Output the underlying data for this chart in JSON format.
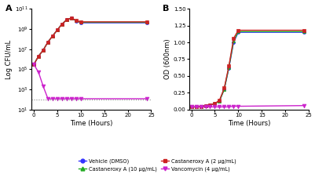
{
  "panel_A": {
    "title": "A",
    "xlabel": "Time (Hours)",
    "ylabel": "Log CFU/mL",
    "xdata": [
      0,
      1,
      2,
      3,
      4,
      5,
      6,
      7,
      8,
      9,
      10,
      24
    ],
    "vehicle": [
      300000.0,
      2000000.0,
      8000000.0,
      50000000.0,
      200000000.0,
      800000000.0,
      3000000000.0,
      8000000000.0,
      12000000000.0,
      6000000000.0,
      4000000000.0,
      4000000000.0
    ],
    "cast2": [
      300000.0,
      2000000.0,
      8000000.0,
      50000000.0,
      200000000.0,
      800000000.0,
      3000000000.0,
      8000000000.0,
      12000000000.0,
      7000000000.0,
      5000000000.0,
      5000000000.0
    ],
    "cast10": [
      300000.0,
      2000000.0,
      8000000.0,
      50000000.0,
      200000000.0,
      800000000.0,
      3000000000.0,
      8000000000.0,
      12000000000.0,
      6500000000.0,
      4500000000.0,
      4500000000.0
    ],
    "vanc": [
      300000.0,
      50000.0,
      2000.0,
      120.0,
      120.0,
      120.0,
      120.0,
      120.0,
      120.0,
      120.0,
      120.0,
      120.0
    ],
    "ylim": [
      10,
      100000000000.0
    ],
    "xlim": [
      -0.5,
      25
    ],
    "xticks": [
      0,
      5,
      10,
      15,
      20,
      25
    ],
    "dotted_line": 100
  },
  "panel_B": {
    "title": "B",
    "xlabel": "Time (Hours)",
    "ylabel": "OD (600nm)",
    "xdata": [
      0,
      1,
      2,
      3,
      4,
      5,
      6,
      7,
      8,
      9,
      10,
      24
    ],
    "vehicle": [
      0.04,
      0.04,
      0.05,
      0.06,
      0.07,
      0.09,
      0.13,
      0.3,
      0.62,
      1.0,
      1.15,
      1.15
    ],
    "cast2": [
      0.04,
      0.04,
      0.05,
      0.06,
      0.07,
      0.09,
      0.14,
      0.32,
      0.65,
      1.06,
      1.18,
      1.18
    ],
    "cast10": [
      0.04,
      0.04,
      0.05,
      0.06,
      0.07,
      0.09,
      0.13,
      0.3,
      0.63,
      1.02,
      1.16,
      1.16
    ],
    "vanc": [
      0.04,
      0.04,
      0.04,
      0.04,
      0.04,
      0.04,
      0.04,
      0.04,
      0.04,
      0.05,
      0.05,
      0.06
    ],
    "ylim": [
      0.0,
      1.5
    ],
    "xlim": [
      -0.5,
      25
    ],
    "xticks": [
      0,
      5,
      10,
      15,
      20,
      25
    ],
    "yticks": [
      0.0,
      0.25,
      0.5,
      0.75,
      1.0,
      1.25,
      1.5
    ]
  },
  "colors": {
    "vehicle": "#3333FF",
    "cast2": "#CC2222",
    "cast10": "#22AA22",
    "vanc": "#CC22CC"
  },
  "legend": {
    "vehicle": "Vehicle (DMSO)",
    "cast2": "Castaneroxy A (2 μg/mL)",
    "cast10": "Castaneroxy A (10 μg/mL)",
    "vanc": "Vancomycin (4 μg/mL)"
  }
}
